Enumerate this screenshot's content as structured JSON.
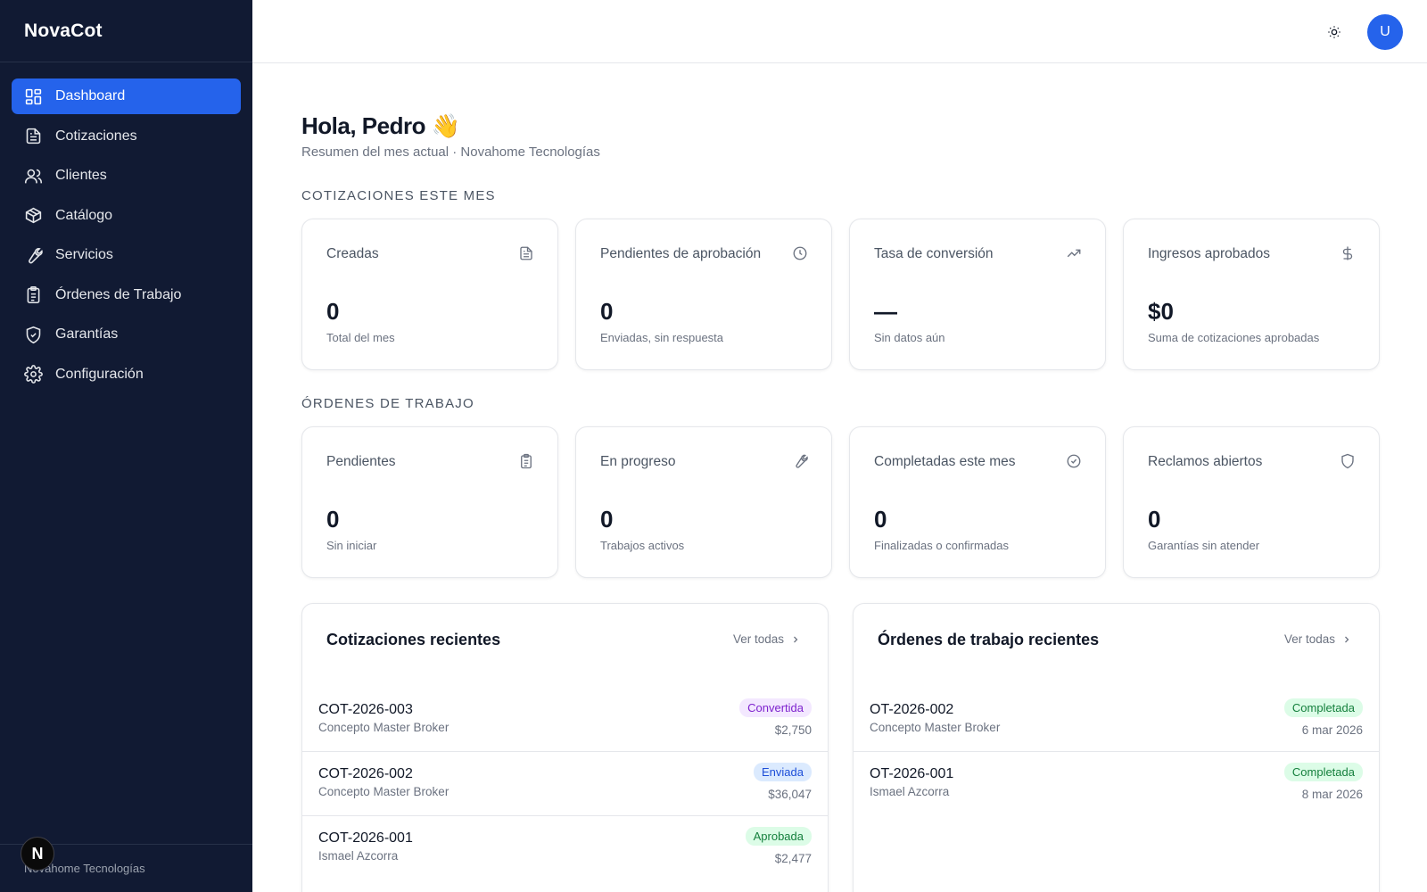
{
  "app": {
    "name": "NovaCot"
  },
  "sidebar": {
    "items": [
      {
        "label": "Dashboard",
        "icon": "dashboard-icon",
        "active": true
      },
      {
        "label": "Cotizaciones",
        "icon": "document-icon",
        "active": false
      },
      {
        "label": "Clientes",
        "icon": "users-icon",
        "active": false
      },
      {
        "label": "Catálogo",
        "icon": "box-icon",
        "active": false
      },
      {
        "label": "Servicios",
        "icon": "wrench-icon",
        "active": false
      },
      {
        "label": "Órdenes de Trabajo",
        "icon": "clipboard-icon",
        "active": false
      },
      {
        "label": "Garantías",
        "icon": "shield-icon",
        "active": false
      },
      {
        "label": "Configuración",
        "icon": "gear-icon",
        "active": false
      }
    ],
    "footer": "Novahome Tecnologías",
    "footer_badge": "N"
  },
  "topbar": {
    "theme_icon": "sun-icon",
    "avatar_initial": "U"
  },
  "header": {
    "greeting": "Hola, Pedro 👋",
    "subtitle": "Resumen del mes actual · Novahome Tecnologías"
  },
  "sections": {
    "quotes_title": "COTIZACIONES ESTE MES",
    "orders_title": "ÓRDENES DE TRABAJO"
  },
  "quote_stats": [
    {
      "label": "Creadas",
      "value": "0",
      "desc": "Total del mes",
      "icon": "file-icon"
    },
    {
      "label": "Pendientes de aprobación",
      "value": "0",
      "desc": "Enviadas, sin respuesta",
      "icon": "clock-icon"
    },
    {
      "label": "Tasa de conversión",
      "value": "—",
      "desc": "Sin datos aún",
      "icon": "trending-up-icon"
    },
    {
      "label": "Ingresos aprobados",
      "value": "$0",
      "desc": "Suma de cotizaciones aprobadas",
      "icon": "dollar-icon"
    }
  ],
  "order_stats": [
    {
      "label": "Pendientes",
      "value": "0",
      "desc": "Sin iniciar",
      "icon": "clipboard-icon"
    },
    {
      "label": "En progreso",
      "value": "0",
      "desc": "Trabajos activos",
      "icon": "wrench-icon"
    },
    {
      "label": "Completadas este mes",
      "value": "0",
      "desc": "Finalizadas o confirmadas",
      "icon": "check-circle-icon"
    },
    {
      "label": "Reclamos abiertos",
      "value": "0",
      "desc": "Garantías sin atender",
      "icon": "shield-icon"
    }
  ],
  "recent_quotes": {
    "title": "Cotizaciones recientes",
    "link": "Ver todas",
    "rows": [
      {
        "code": "COT-2026-003",
        "client": "Concepto Master Broker",
        "status": "Convertida",
        "amount": "$2,750",
        "status_color": "#7e22ce"
      },
      {
        "code": "COT-2026-002",
        "client": "Concepto Master Broker",
        "status": "Enviada",
        "amount": "$36,047",
        "status_color": "#1d4ed8"
      },
      {
        "code": "COT-2026-001",
        "client": "Ismael Azcorra",
        "status": "Aprobada",
        "amount": "$2,477",
        "status_color": "#15803d"
      }
    ]
  },
  "recent_orders": {
    "title": "Órdenes de trabajo recientes",
    "link": "Ver todas",
    "rows": [
      {
        "code": "OT-2026-002",
        "client": "Concepto Master Broker",
        "status": "Completada",
        "date": "6 mar 2026",
        "status_color": "#15803d"
      },
      {
        "code": "OT-2026-001",
        "client": "Ismael Azcorra",
        "status": "Completada",
        "date": "8 mar 2026",
        "status_color": "#15803d"
      }
    ]
  },
  "colors": {
    "sidebar_bg": "#111a33",
    "accent": "#2563eb"
  }
}
